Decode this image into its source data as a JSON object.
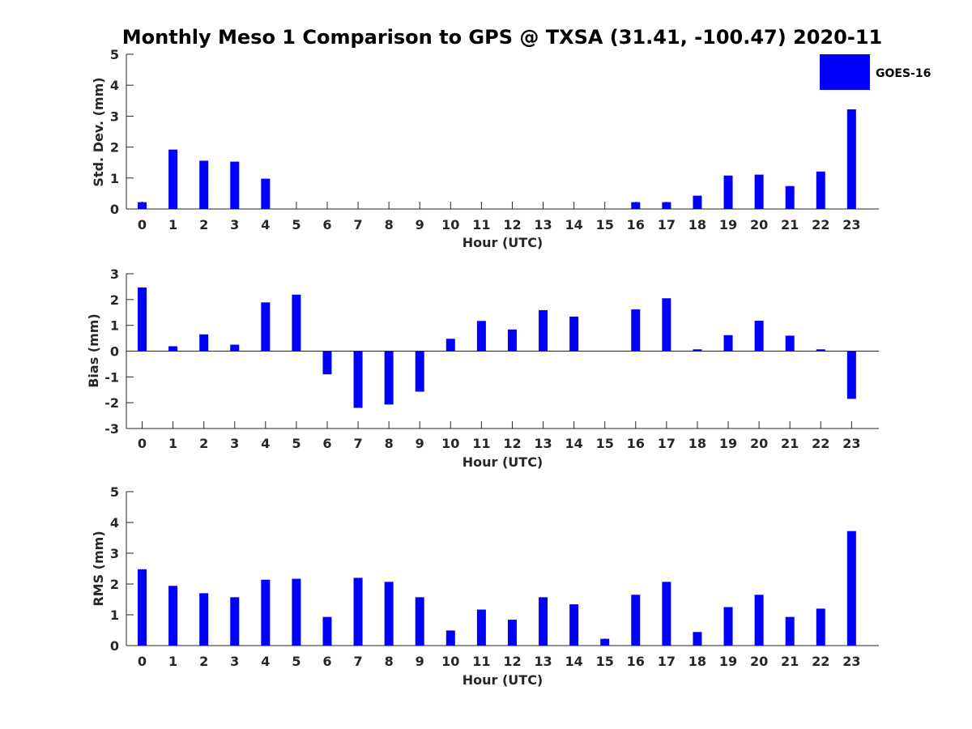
{
  "figure": {
    "title": "Monthly Meso 1 Comparison to GPS @ TXSA (31.41, -100.47) 2020-11",
    "legend": "GOES-16"
  },
  "colors": {
    "bar": "#0000ff",
    "axis": "#262626",
    "background": "#ffffff"
  },
  "chart_data": [
    {
      "type": "bar",
      "series": [
        {
          "name": "GOES-16",
          "values": [
            0.22,
            1.92,
            1.56,
            1.53,
            0.98,
            0,
            0,
            0,
            0,
            0,
            0,
            0,
            0,
            0,
            0,
            0,
            0.22,
            0.22,
            0.43,
            1.08,
            1.11,
            0.74,
            1.21,
            3.22
          ]
        }
      ],
      "categories": [
        "0",
        "1",
        "2",
        "3",
        "4",
        "5",
        "6",
        "7",
        "8",
        "9",
        "10",
        "11",
        "12",
        "13",
        "14",
        "15",
        "16",
        "17",
        "18",
        "19",
        "20",
        "21",
        "22",
        "23"
      ],
      "xlabel": "Hour (UTC)",
      "ylabel": "Std. Dev. (mm)",
      "ylim": [
        0,
        5
      ],
      "yticks": [
        "0",
        "1",
        "2",
        "3",
        "4",
        "5"
      ]
    },
    {
      "type": "bar",
      "series": [
        {
          "name": "GOES-16",
          "values": [
            2.47,
            0.19,
            0.65,
            0.25,
            1.89,
            2.19,
            -0.9,
            -2.2,
            -2.07,
            -1.57,
            0.48,
            1.17,
            0.84,
            1.59,
            1.34,
            0,
            1.62,
            2.05,
            0.07,
            0.62,
            1.18,
            0.6,
            0.07,
            -1.85
          ]
        }
      ],
      "categories": [
        "0",
        "1",
        "2",
        "3",
        "4",
        "5",
        "6",
        "7",
        "8",
        "9",
        "10",
        "11",
        "12",
        "13",
        "14",
        "15",
        "16",
        "17",
        "18",
        "19",
        "20",
        "21",
        "22",
        "23"
      ],
      "xlabel": "Hour (UTC)",
      "ylabel": "Bias (mm)",
      "ylim": [
        -3,
        3
      ],
      "yticks": [
        "-3",
        "-2",
        "-1",
        "0",
        "1",
        "2",
        "3"
      ]
    },
    {
      "type": "bar",
      "series": [
        {
          "name": "GOES-16",
          "values": [
            2.48,
            1.94,
            1.7,
            1.57,
            2.14,
            2.17,
            0.93,
            2.2,
            2.07,
            1.57,
            0.49,
            1.17,
            0.84,
            1.57,
            1.34,
            0.22,
            1.65,
            2.07,
            0.44,
            1.25,
            1.65,
            0.93,
            1.2,
            3.72
          ]
        }
      ],
      "categories": [
        "0",
        "1",
        "2",
        "3",
        "4",
        "5",
        "6",
        "7",
        "8",
        "9",
        "10",
        "11",
        "12",
        "13",
        "14",
        "15",
        "16",
        "17",
        "18",
        "19",
        "20",
        "21",
        "22",
        "23"
      ],
      "xlabel": "Hour (UTC)",
      "ylabel": "RMS (mm)",
      "ylim": [
        0,
        5
      ],
      "yticks": [
        "0",
        "1",
        "2",
        "3",
        "4",
        "5"
      ]
    }
  ]
}
